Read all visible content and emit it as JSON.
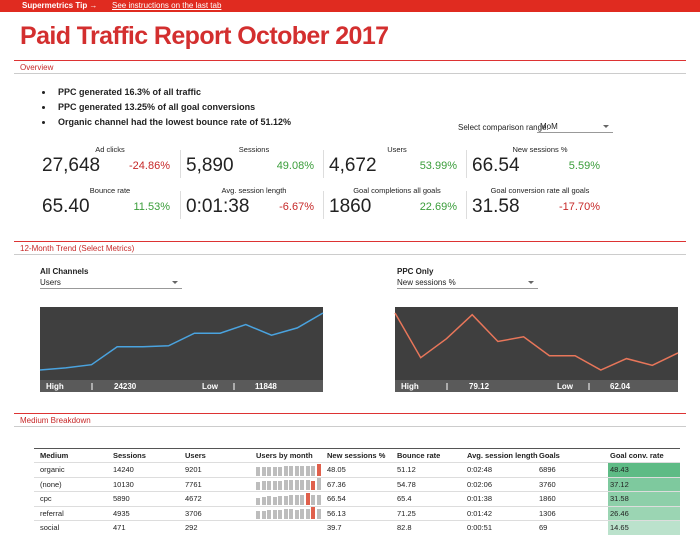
{
  "tip_bar": {
    "label": "Supermetrics Tip →",
    "link": "See instructions on the last tab"
  },
  "header": {
    "title": "Paid Traffic Report October 2017"
  },
  "overview": {
    "section": "Overview",
    "bullets": [
      "PPC generated 16.3% of all traffic",
      "PPC generated 13.25% of all goal conversions",
      "Organic channel had the lowest bounce rate of 51.12%"
    ],
    "comparison": {
      "label": "Select comparison range:",
      "value": "MoM"
    },
    "kpis": [
      {
        "label": "Ad clicks",
        "value": "27,648",
        "change": "-24.86%"
      },
      {
        "label": "Sessions",
        "value": "5,890",
        "change": "49.08%"
      },
      {
        "label": "Users",
        "value": "4,672",
        "change": "53.99%"
      },
      {
        "label": "New sessions %",
        "value": "66.54",
        "change": "5.59%"
      },
      {
        "label": "Bounce rate",
        "value": "65.40",
        "change": "11.53%"
      },
      {
        "label": "Avg. session length",
        "value": "0:01:38",
        "change": "-6.67%"
      },
      {
        "label": "Goal completions all goals",
        "value": "1860",
        "change": "22.69%"
      },
      {
        "label": "Goal conversion rate all goals",
        "value": "31.58",
        "change": "-17.70%"
      }
    ]
  },
  "trend": {
    "section": "12-Month Trend (Select Metrics)",
    "high_label": "High",
    "low_label": "Low",
    "selectors": [
      {
        "label": "All Channels",
        "value": "Users"
      },
      {
        "label": "PPC Only",
        "value": "New sessions %"
      }
    ]
  },
  "chart_data": [
    {
      "type": "line",
      "color": "#4aa3df",
      "values": [
        11848,
        12306,
        13000,
        16880,
        16880,
        17100,
        19850,
        19850,
        21700,
        19400,
        21000,
        24230
      ]
    },
    {
      "type": "line",
      "color": "#e8765a",
      "values": [
        79.12,
        65.74,
        71.43,
        78.6,
        70.58,
        72.0,
        66.32,
        66.32,
        62.04,
        65.45,
        63.46,
        67.16
      ]
    }
  ],
  "table": {
    "section": "Medium Breakdown",
    "columns": [
      "Medium",
      "Sessions",
      "Users",
      "Users by month",
      "New sessions %",
      "Bounce rate",
      "Avg. session length",
      "Goals",
      "Goal conv. rate"
    ],
    "rows": [
      [
        "organic",
        14240,
        9201,
        null,
        48.05,
        51.12,
        "0:02:48",
        6896,
        48.43
      ],
      [
        "(none)",
        10130,
        7761,
        null,
        67.36,
        54.78,
        "0:02:06",
        3760,
        37.12
      ],
      [
        "cpc",
        5890,
        4672,
        null,
        66.54,
        65.4,
        "0:01:38",
        1860,
        31.58
      ],
      [
        "referral",
        4935,
        3706,
        null,
        56.13,
        71.25,
        "0:01:42",
        1306,
        26.46
      ],
      [
        "social",
        471,
        292,
        null,
        39.7,
        82.8,
        "0:00:51",
        69,
        14.65
      ]
    ],
    "sparklines": [
      {
        "values": [
          9,
          9,
          9,
          9,
          9,
          10,
          10,
          10,
          10,
          10,
          10,
          12
        ],
        "highlight": 11
      },
      {
        "values": [
          8,
          9,
          9,
          9,
          9,
          10,
          10,
          10,
          10,
          10,
          9,
          12
        ],
        "highlight": 10
      },
      {
        "values": [
          7,
          8,
          9,
          8,
          9,
          9,
          10,
          10,
          10,
          12,
          10,
          10
        ],
        "highlight": 9
      },
      {
        "values": [
          8,
          8,
          9,
          9,
          9,
          10,
          10,
          9,
          10,
          10,
          12,
          10
        ],
        "highlight": 10
      },
      null
    ]
  }
}
